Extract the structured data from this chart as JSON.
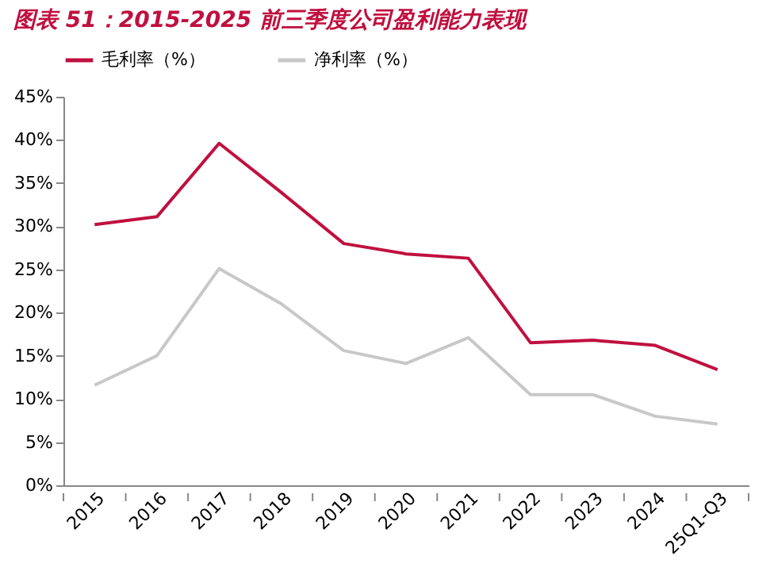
{
  "chart_data": {
    "type": "line",
    "title": "图表 51：2015-2025 前三季度公司盈利能力表现",
    "categories": [
      "2015",
      "2016",
      "2017",
      "2018",
      "2019",
      "2020",
      "2021",
      "2022",
      "2023",
      "2024",
      "25Q1-Q3"
    ],
    "series": [
      {
        "name": "毛利率（%）",
        "color": "#c0103f",
        "values": [
          30.2,
          31.1,
          39.6,
          33.9,
          28.0,
          26.8,
          26.3,
          16.5,
          16.8,
          16.2,
          13.4
        ]
      },
      {
        "name": "净利率（%）",
        "color": "#c8c8c8",
        "values": [
          11.6,
          15.0,
          25.1,
          21.0,
          15.6,
          14.1,
          17.1,
          10.5,
          10.5,
          8.0,
          7.1
        ]
      }
    ],
    "ylim": [
      0,
      45
    ],
    "yticks": [
      {
        "value": 0,
        "label": "0%"
      },
      {
        "value": 5,
        "label": "5%"
      },
      {
        "value": 10,
        "label": "10%"
      },
      {
        "value": 15,
        "label": "15%"
      },
      {
        "value": 20,
        "label": "20%"
      },
      {
        "value": 25,
        "label": "25%"
      },
      {
        "value": 30,
        "label": "30%"
      },
      {
        "value": 35,
        "label": "35%"
      },
      {
        "value": 40,
        "label": "40%"
      },
      {
        "value": 45,
        "label": "45%"
      }
    ],
    "grid": false,
    "legend": "top",
    "marker": "none",
    "line_style": "solid"
  }
}
